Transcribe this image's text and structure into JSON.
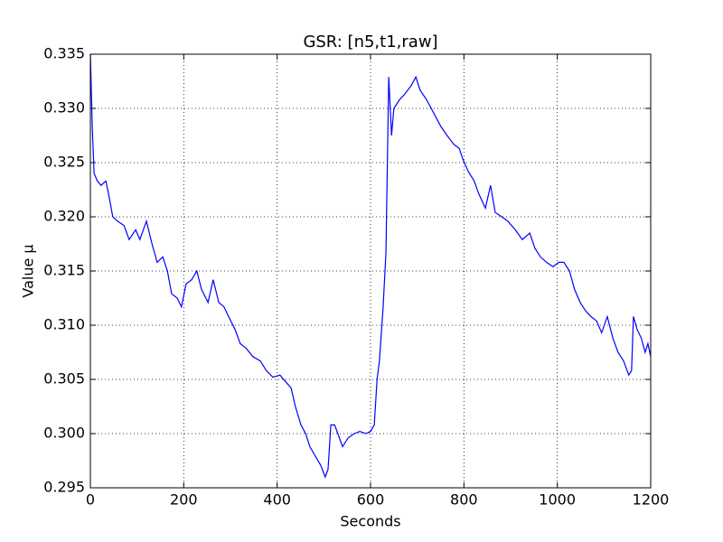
{
  "chart_data": {
    "type": "line",
    "title": "GSR: [n5,t1,raw]",
    "x_label": "Seconds",
    "y_label": "Value µ",
    "x": [
      0,
      4,
      8,
      15,
      23,
      33,
      39,
      48,
      58,
      72,
      83,
      97,
      106,
      120,
      132,
      143,
      155,
      165,
      174,
      186,
      195,
      205,
      217,
      228,
      238,
      252,
      263,
      275,
      286,
      296,
      310,
      321,
      333,
      348,
      364,
      377,
      391,
      406,
      422,
      430,
      439,
      451,
      461,
      470,
      482,
      493,
      503,
      509,
      515,
      523,
      530,
      540,
      552,
      565,
      577,
      590,
      600,
      608,
      614,
      619,
      627,
      633,
      639,
      645,
      650,
      662,
      673,
      687,
      697,
      706,
      720,
      735,
      751,
      764,
      778,
      790,
      797,
      809,
      822,
      832,
      846,
      857,
      867,
      881,
      894,
      910,
      925,
      941,
      952,
      964,
      977,
      991,
      1003,
      1014,
      1026,
      1037,
      1049,
      1061,
      1072,
      1084,
      1095,
      1107,
      1119,
      1130,
      1142,
      1153,
      1159,
      1163,
      1171,
      1180,
      1188,
      1194,
      1200
    ],
    "series": [
      {
        "color": "#0000ff",
        "values": [
          0.335,
          0.3283,
          0.324,
          0.3233,
          0.3229,
          0.3233,
          0.3221,
          0.32,
          0.3196,
          0.3192,
          0.3179,
          0.3188,
          0.3179,
          0.3196,
          0.3175,
          0.3158,
          0.3163,
          0.315,
          0.3129,
          0.3125,
          0.3117,
          0.3138,
          0.3142,
          0.315,
          0.3133,
          0.3121,
          0.3142,
          0.3121,
          0.3117,
          0.3108,
          0.3096,
          0.3083,
          0.3079,
          0.3071,
          0.3067,
          0.3058,
          0.3052,
          0.3054,
          0.3046,
          0.3042,
          0.3025,
          0.3008,
          0.3,
          0.2988,
          0.2979,
          0.2971,
          0.296,
          0.2967,
          0.3008,
          0.3008,
          0.3,
          0.2988,
          0.2996,
          0.3,
          0.3002,
          0.3,
          0.3002,
          0.3008,
          0.305,
          0.3067,
          0.3117,
          0.3167,
          0.3329,
          0.3275,
          0.33,
          0.3308,
          0.3313,
          0.3321,
          0.3329,
          0.3317,
          0.3308,
          0.3296,
          0.3283,
          0.3275,
          0.3267,
          0.3263,
          0.3254,
          0.3242,
          0.3233,
          0.3221,
          0.3208,
          0.3229,
          0.3204,
          0.32,
          0.3196,
          0.3188,
          0.3179,
          0.3185,
          0.3171,
          0.3163,
          0.3158,
          0.3154,
          0.3158,
          0.3158,
          0.315,
          0.3133,
          0.3121,
          0.3113,
          0.3108,
          0.3104,
          0.3093,
          0.3108,
          0.3088,
          0.3075,
          0.3067,
          0.3054,
          0.3058,
          0.3108,
          0.3096,
          0.3088,
          0.3075,
          0.3083,
          0.3071
        ]
      }
    ],
    "xlim": [
      0,
      1200
    ],
    "xticks": [
      0,
      200,
      400,
      600,
      800,
      1000,
      1200
    ],
    "ylim": [
      0.295,
      0.335
    ],
    "yticks": [
      0.295,
      {
        "value": 0.3,
        "label": "0.300"
      },
      0.305,
      {
        "value": 0.31,
        "label": "0.310"
      },
      0.315,
      {
        "value": 0.32,
        "label": "0.320"
      },
      0.325,
      {
        "value": 0.33,
        "label": "0.330"
      },
      0.335
    ],
    "grid": true
  }
}
